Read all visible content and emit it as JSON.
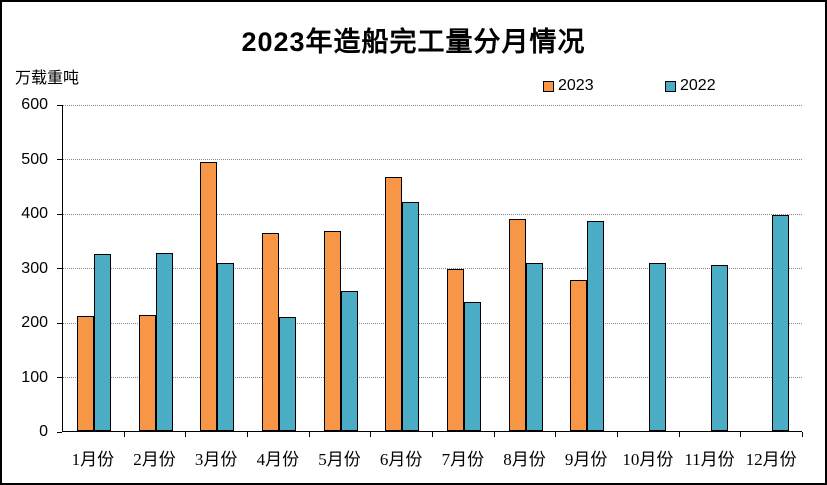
{
  "chart_data": {
    "type": "bar",
    "title": "2023年造船完工量分月情况",
    "unit_label": "万载重吨",
    "categories": [
      "1月份",
      "2月份",
      "3月份",
      "4月份",
      "5月份",
      "6月份",
      "7月份",
      "8月份",
      "9月份",
      "10月份",
      "11月份",
      "12月份"
    ],
    "series": [
      {
        "name": "2023",
        "color": "#F79646",
        "values": [
          211,
          212,
          494,
          363,
          367,
          466,
          297,
          389,
          277,
          null,
          null,
          null
        ]
      },
      {
        "name": "2022",
        "color": "#4BACC6",
        "values": [
          325,
          327,
          308,
          210,
          256,
          421,
          236,
          309,
          385,
          308,
          304,
          397
        ]
      }
    ],
    "ylim": [
      0,
      600
    ],
    "yticks": [
      0,
      100,
      200,
      300,
      400,
      500,
      600
    ],
    "grid": "horizontal-dotted",
    "legend_position": "top-right",
    "axis_color": "#000000",
    "gridline_color": "#888888"
  }
}
